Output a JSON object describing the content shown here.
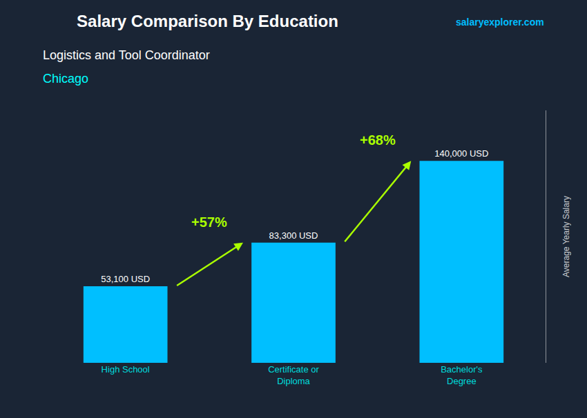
{
  "chart_data": {
    "type": "bar",
    "title": "Salary Comparison By Education",
    "subtitle": "Logistics and Tool Coordinator",
    "ylabel": "Average Yearly Salary",
    "categories": [
      "High School",
      "Certificate or\nDiploma",
      "Bachelor's\nDegree"
    ],
    "values": [
      53100,
      83300,
      140000
    ],
    "value_labels": [
      "53,100 USD",
      "83,300 USD",
      "140,000 USD"
    ],
    "data_labels": true,
    "color": "#00BFFF",
    "ylim": [
      0,
      175000
    ],
    "grid": false,
    "tick_labels": "x",
    "annotations": [
      {
        "text": "Chicago",
        "color": "#00FFFF"
      },
      {
        "text": "salaryexplorer.com",
        "color": "#00BFFF"
      },
      {
        "text": "+57%",
        "from": "High School",
        "to": "Certificate or\nDiploma",
        "color": "#AAFF00"
      },
      {
        "text": "+68%",
        "from": "Certificate or\nDiploma",
        "to": "Bachelor's\nDegree",
        "color": "#AAFF00"
      }
    ]
  }
}
